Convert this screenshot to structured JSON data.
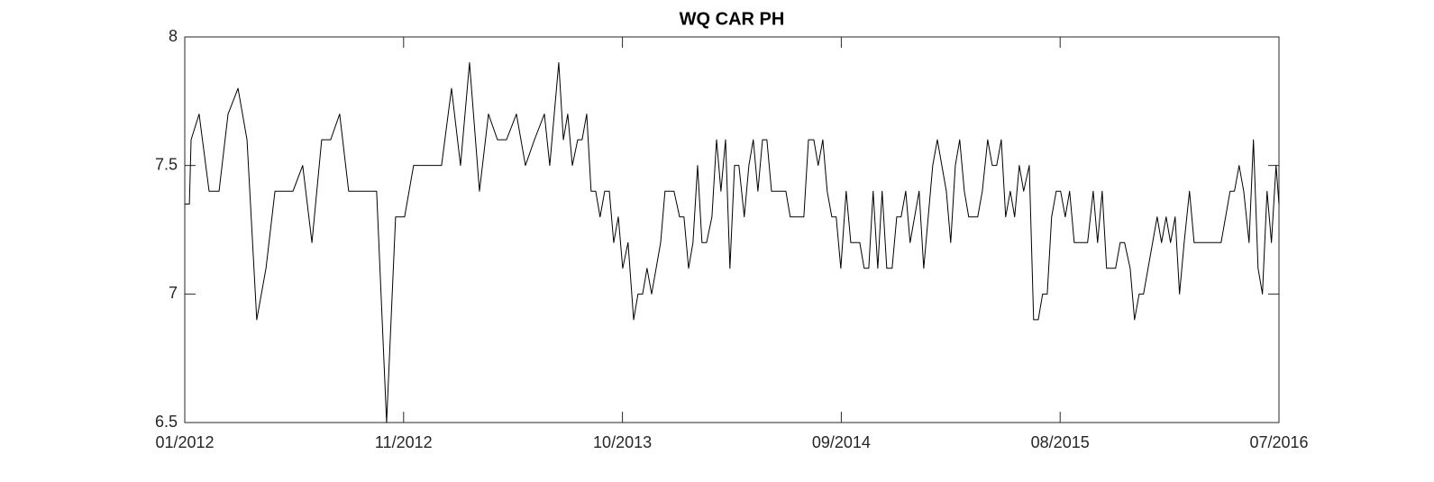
{
  "chart_data": {
    "type": "line",
    "title": "WQ CAR PH",
    "x": [
      2012.0,
      2012.019,
      2012.026,
      2012.059,
      2012.1,
      2012.141,
      2012.178,
      2012.219,
      2012.256,
      2012.296,
      2012.334,
      2012.371,
      2012.445,
      2012.485,
      2012.523,
      2012.563,
      2012.6,
      2012.637,
      2012.674,
      2012.789,
      2012.83,
      2012.867,
      2012.904,
      2012.941,
      2013.056,
      2013.097,
      2013.134,
      2013.171,
      2013.212,
      2013.249,
      2013.286,
      2013.323,
      2013.364,
      2013.401,
      2013.438,
      2013.479,
      2013.501,
      2013.538,
      2013.557,
      2013.575,
      2013.594,
      2013.616,
      2013.634,
      2013.653,
      2013.671,
      2013.69,
      2013.708,
      2013.727,
      2013.746,
      2013.764,
      2013.783,
      2013.801,
      2013.823,
      2013.846,
      2013.864,
      2013.883,
      2013.901,
      2013.92,
      2013.957,
      2013.975,
      2014.012,
      2014.035,
      2014.053,
      2014.072,
      2014.09,
      2014.109,
      2014.127,
      2014.146,
      2014.168,
      2014.187,
      2014.205,
      2014.224,
      2014.242,
      2014.261,
      2014.279,
      2014.301,
      2014.32,
      2014.338,
      2014.357,
      2014.376,
      2014.394,
      2014.413,
      2014.472,
      2014.49,
      2014.546,
      2014.565,
      2014.587,
      2014.605,
      2014.624,
      2014.642,
      2014.661,
      2014.679,
      2014.698,
      2014.72,
      2014.739,
      2014.776,
      2014.794,
      2014.813,
      2014.831,
      2014.85,
      2014.868,
      2014.887,
      2014.909,
      2014.928,
      2014.946,
      2014.965,
      2014.983,
      2015.02,
      2015.039,
      2015.076,
      2015.095,
      2015.132,
      2015.15,
      2015.169,
      2015.187,
      2015.206,
      2015.224,
      2015.261,
      2015.28,
      2015.302,
      2015.321,
      2015.339,
      2015.358,
      2015.376,
      2015.395,
      2015.413,
      2015.432,
      2015.45,
      2015.473,
      2015.491,
      2015.51,
      2015.528,
      2015.547,
      2015.565,
      2015.584,
      2015.602,
      2015.621,
      2015.639,
      2015.658,
      2015.713,
      2015.736,
      2015.754,
      2015.773,
      2015.791,
      2015.828,
      2015.847,
      2015.865,
      2015.888,
      2015.906,
      2015.925,
      2015.943,
      2015.999,
      2016.017,
      2016.036,
      2016.054,
      2016.073,
      2016.091,
      2016.11,
      2016.132,
      2016.151,
      2016.262,
      2016.299,
      2016.317,
      2016.336,
      2016.355,
      2016.377,
      2016.395,
      2016.414,
      2016.432,
      2016.451,
      2016.469,
      2016.488,
      2016.5
    ],
    "series": [
      {
        "color": "#000000",
        "values": [
          7.35,
          7.35,
          7.6,
          7.7,
          7.4,
          7.4,
          7.7,
          7.8,
          7.6,
          6.9,
          7.1,
          7.4,
          7.4,
          7.5,
          7.2,
          7.6,
          7.6,
          7.7,
          7.4,
          7.4,
          6.5,
          7.3,
          7.3,
          7.5,
          7.5,
          7.8,
          7.5,
          7.9,
          7.4,
          7.7,
          7.6,
          7.6,
          7.7,
          7.5,
          7.6,
          7.7,
          7.5,
          7.9,
          7.6,
          7.7,
          7.5,
          7.6,
          7.6,
          7.7,
          7.4,
          7.4,
          7.3,
          7.4,
          7.4,
          7.2,
          7.3,
          7.1,
          7.2,
          6.9,
          7.0,
          7.0,
          7.1,
          7.0,
          7.2,
          7.4,
          7.4,
          7.3,
          7.3,
          7.1,
          7.2,
          7.5,
          7.2,
          7.2,
          7.3,
          7.6,
          7.4,
          7.6,
          7.1,
          7.5,
          7.5,
          7.3,
          7.5,
          7.6,
          7.4,
          7.6,
          7.6,
          7.4,
          7.4,
          7.3,
          7.3,
          7.6,
          7.6,
          7.5,
          7.6,
          7.4,
          7.3,
          7.3,
          7.1,
          7.4,
          7.2,
          7.2,
          7.1,
          7.1,
          7.4,
          7.1,
          7.4,
          7.1,
          7.1,
          7.3,
          7.3,
          7.4,
          7.2,
          7.4,
          7.1,
          7.5,
          7.6,
          7.4,
          7.2,
          7.5,
          7.6,
          7.4,
          7.3,
          7.3,
          7.4,
          7.6,
          7.5,
          7.5,
          7.6,
          7.3,
          7.4,
          7.3,
          7.5,
          7.4,
          7.5,
          6.9,
          6.9,
          7.0,
          7.0,
          7.3,
          7.4,
          7.4,
          7.3,
          7.4,
          7.2,
          7.2,
          7.4,
          7.2,
          7.4,
          7.1,
          7.1,
          7.2,
          7.2,
          7.1,
          6.9,
          7.0,
          7.0,
          7.3,
          7.2,
          7.3,
          7.2,
          7.3,
          7.0,
          7.2,
          7.4,
          7.2,
          7.2,
          7.4,
          7.4,
          7.5,
          7.4,
          7.2,
          7.6,
          7.1,
          7.0,
          7.4,
          7.2,
          7.5,
          7.35
        ]
      }
    ],
    "xlim": [
      2012.0,
      2016.5
    ],
    "xticks": [
      {
        "value": 2012.0,
        "label": "01/2012"
      },
      {
        "value": 2012.9,
        "label": "11/2012"
      },
      {
        "value": 2013.8,
        "label": "10/2013"
      },
      {
        "value": 2014.7,
        "label": "09/2014"
      },
      {
        "value": 2015.6,
        "label": "08/2015"
      },
      {
        "value": 2016.5,
        "label": "07/2016"
      }
    ],
    "ylim": [
      6.5,
      8
    ],
    "yticks": [
      6.5,
      7,
      7.5,
      8
    ],
    "grid": false
  }
}
